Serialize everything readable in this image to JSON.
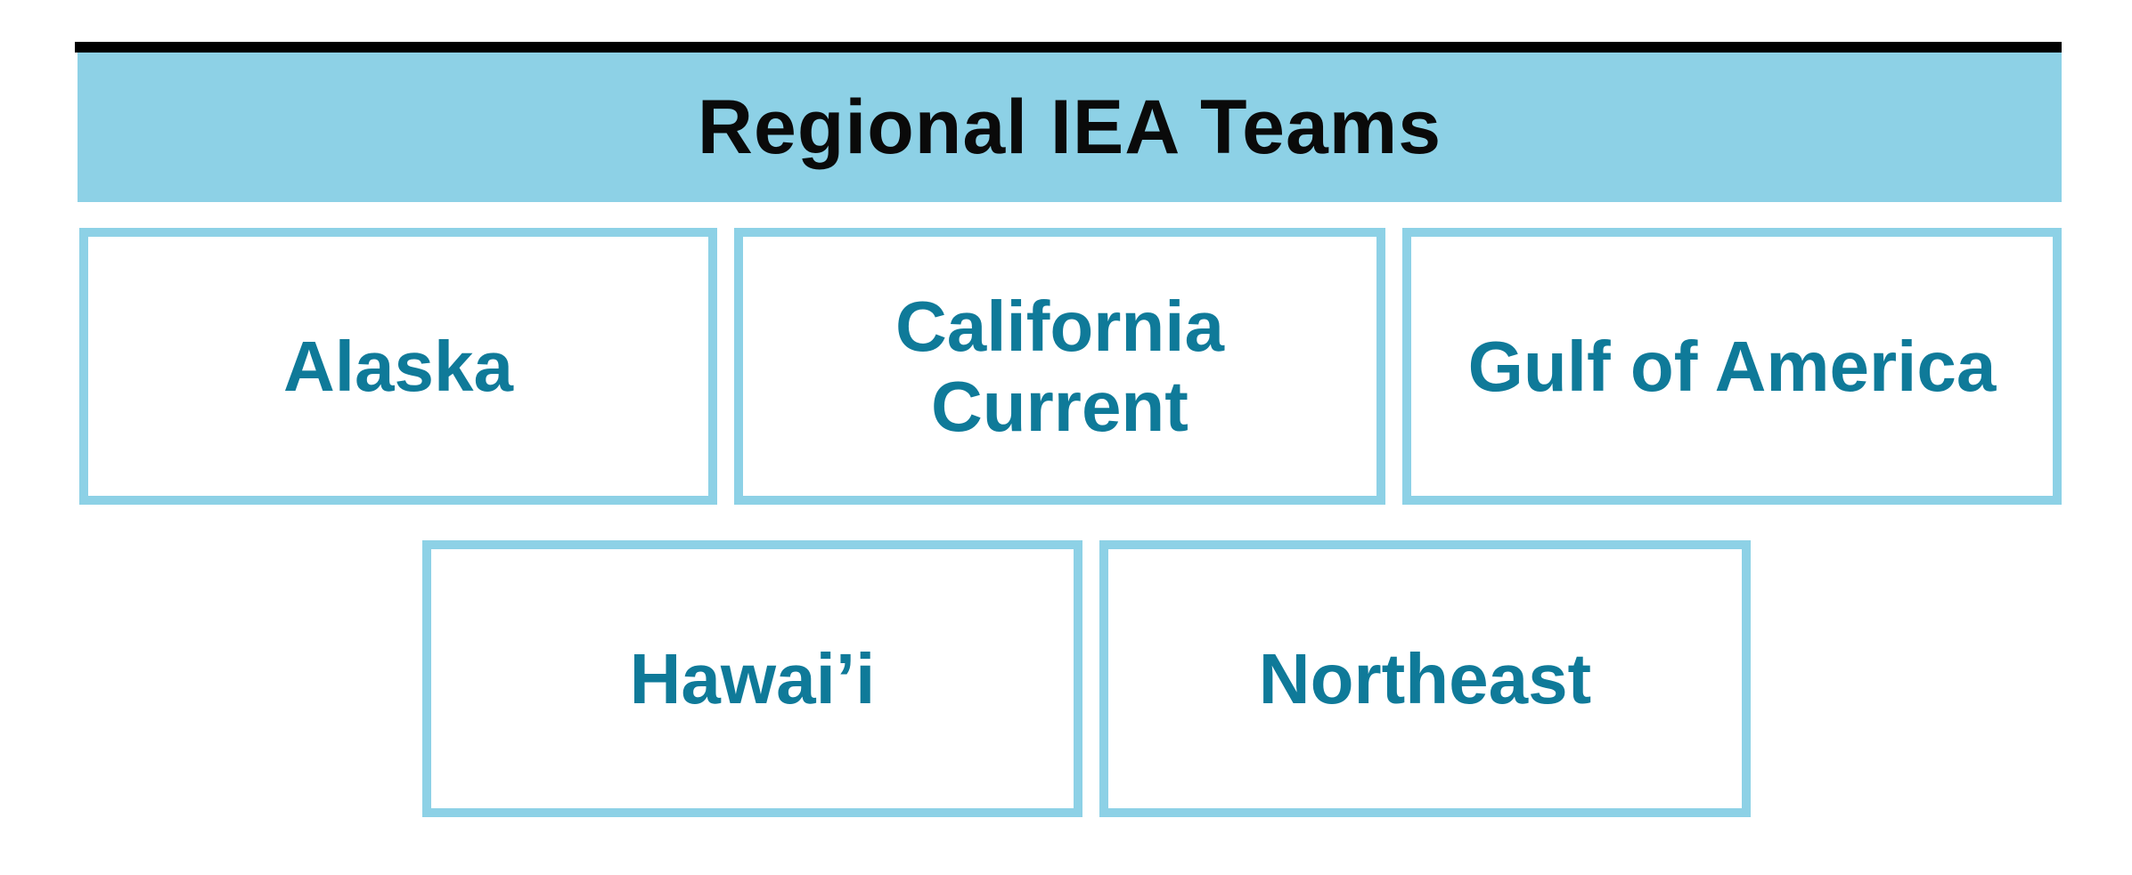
{
  "title": "Regional IEA Teams",
  "colors": {
    "band": "#8dd1e6",
    "box_border": "#8dd1e6",
    "label_text": "#0f7a99",
    "title_text": "#0a0a0a",
    "rule": "#000000"
  },
  "teams": [
    {
      "label": "Alaska"
    },
    {
      "label": "California\nCurrent"
    },
    {
      "label": "Gulf of America"
    },
    {
      "label": "Hawai’i"
    },
    {
      "label": "Northeast"
    }
  ]
}
